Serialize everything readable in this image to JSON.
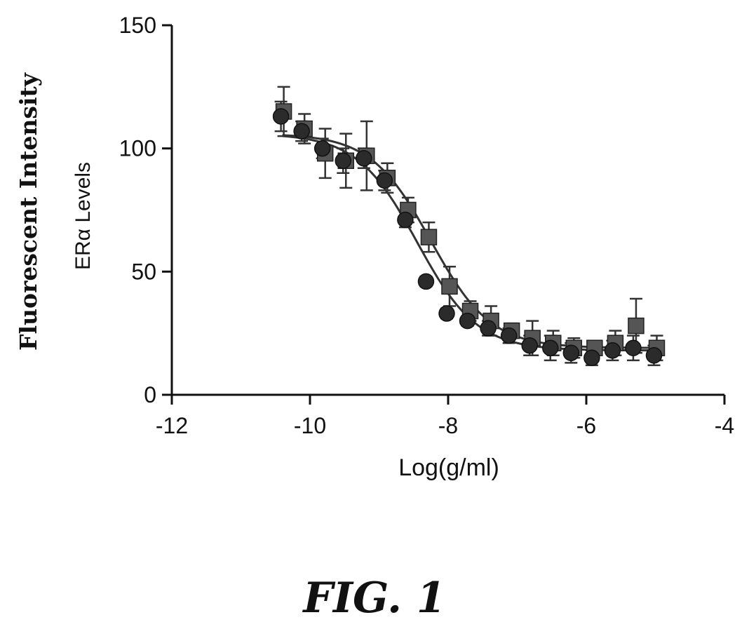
{
  "figure_label": "FIG. 1",
  "chart_data": {
    "type": "scatter",
    "ylabel_line1": "Fluorescent Intensity",
    "ylabel_line2": "ERα Levels",
    "xlabel": "Log(g/ml)",
    "xlim": [
      -12,
      -4
    ],
    "ylim": [
      0,
      150
    ],
    "xticks": [
      -12,
      -10,
      -8,
      -6,
      -4
    ],
    "yticks": [
      0,
      50,
      100,
      150
    ],
    "xtick_labels": [
      "-12",
      "-10",
      "-8",
      "-6",
      "-4"
    ],
    "ytick_labels": [
      "0",
      "50",
      "100",
      "150"
    ],
    "series": [
      {
        "marker": "circle",
        "color": "#2b2b2b",
        "points": [
          {
            "x": -10.4,
            "y": 113,
            "err": 6
          },
          {
            "x": -10.1,
            "y": 107,
            "err": 4
          },
          {
            "x": -9.8,
            "y": 100,
            "err": 4
          },
          {
            "x": -9.5,
            "y": 95,
            "err": 5
          },
          {
            "x": -9.2,
            "y": 96,
            "err": 4
          },
          {
            "x": -8.9,
            "y": 87,
            "err": 4
          },
          {
            "x": -8.6,
            "y": 71,
            "err": 3
          },
          {
            "x": -8.3,
            "y": 46,
            "err": 2
          },
          {
            "x": -8.0,
            "y": 33,
            "err": 2
          },
          {
            "x": -7.7,
            "y": 30,
            "err": 2
          },
          {
            "x": -7.4,
            "y": 27,
            "err": 3
          },
          {
            "x": -7.1,
            "y": 24,
            "err": 3
          },
          {
            "x": -6.8,
            "y": 20,
            "err": 4
          },
          {
            "x": -6.5,
            "y": 19,
            "err": 5
          },
          {
            "x": -6.2,
            "y": 17,
            "err": 4
          },
          {
            "x": -5.9,
            "y": 15,
            "err": 3
          },
          {
            "x": -5.6,
            "y": 18,
            "err": 4
          },
          {
            "x": -5.3,
            "y": 19,
            "err": 5
          },
          {
            "x": -5.0,
            "y": 16,
            "err": 4
          }
        ],
        "fit": {
          "top": 106,
          "bottom": 18,
          "logEC50": -8.45,
          "hill": 1.0
        }
      },
      {
        "marker": "square",
        "color": "#555555",
        "points": [
          {
            "x": -10.4,
            "y": 115,
            "err": 10
          },
          {
            "x": -10.1,
            "y": 108,
            "err": 6
          },
          {
            "x": -9.8,
            "y": 98,
            "err": 10
          },
          {
            "x": -9.5,
            "y": 95,
            "err": 11
          },
          {
            "x": -9.2,
            "y": 97,
            "err": 14
          },
          {
            "x": -8.9,
            "y": 88,
            "err": 6
          },
          {
            "x": -8.6,
            "y": 75,
            "err": 5
          },
          {
            "x": -8.3,
            "y": 64,
            "err": 6
          },
          {
            "x": -8.0,
            "y": 44,
            "err": 8
          },
          {
            "x": -7.7,
            "y": 34,
            "err": 4
          },
          {
            "x": -7.4,
            "y": 30,
            "err": 6
          },
          {
            "x": -7.1,
            "y": 26,
            "err": 3
          },
          {
            "x": -6.8,
            "y": 23,
            "err": 7
          },
          {
            "x": -6.5,
            "y": 21,
            "err": 5
          },
          {
            "x": -6.2,
            "y": 19,
            "err": 4
          },
          {
            "x": -5.9,
            "y": 19,
            "err": 3
          },
          {
            "x": -5.6,
            "y": 21,
            "err": 5
          },
          {
            "x": -5.3,
            "y": 28,
            "err": 11
          },
          {
            "x": -5.0,
            "y": 19,
            "err": 5
          }
        ],
        "fit": {
          "top": 106,
          "bottom": 19,
          "logEC50": -8.25,
          "hill": 1.0
        }
      }
    ]
  }
}
